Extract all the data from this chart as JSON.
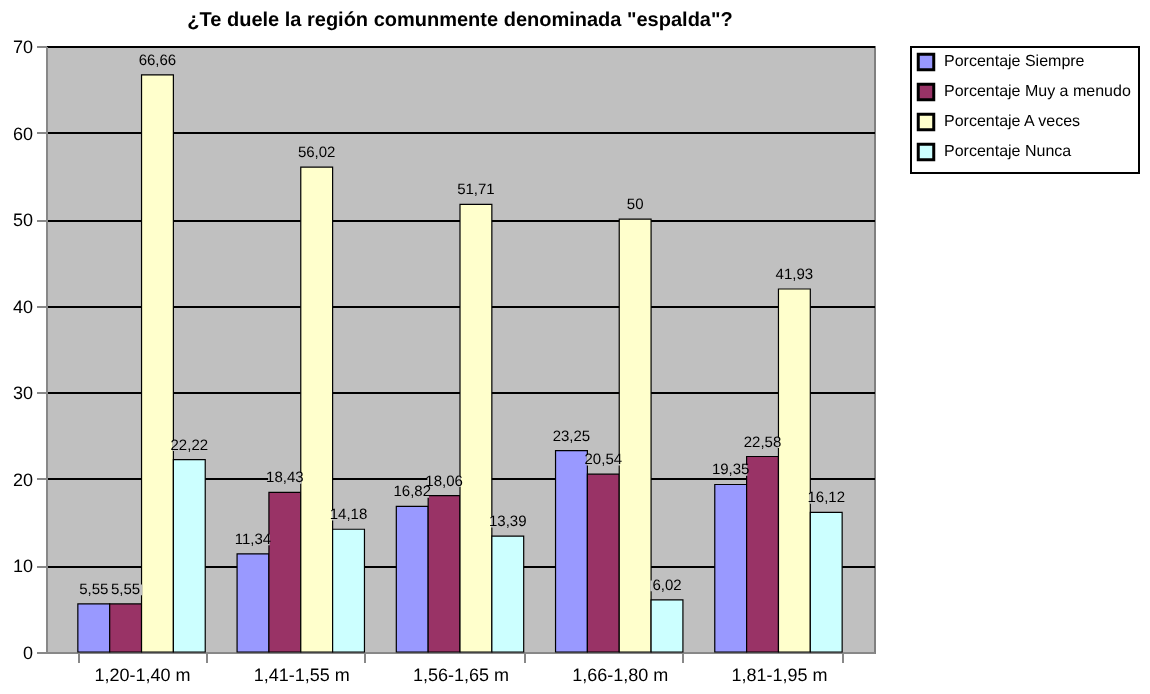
{
  "chart_data": {
    "type": "bar",
    "title": "¿Te duele la región comunmente denominada \"espalda\"?",
    "categories": [
      "1,20-1,40 m",
      "1,41-1,55 m",
      "1,56-1,65 m",
      "1,66-1,80 m",
      "1,81-1,95 m"
    ],
    "series": [
      {
        "name": "Porcentaje Siempre",
        "color": "#9999ff",
        "values": [
          5.55,
          11.34,
          16.82,
          23.25,
          19.35
        ],
        "value_labels": [
          "5,55",
          "11,34",
          "16,82",
          "23,25",
          "19,35"
        ]
      },
      {
        "name": "Porcentaje Muy a menudo",
        "color": "#993366",
        "values": [
          5.55,
          18.43,
          18.06,
          20.54,
          22.58
        ],
        "value_labels": [
          "5,55",
          "18,43",
          "18,06",
          "20,54",
          "22,58"
        ]
      },
      {
        "name": "Porcentaje A veces",
        "color": "#ffffcc",
        "values": [
          66.66,
          56.02,
          51.71,
          50,
          41.93
        ],
        "value_labels": [
          "66,66",
          "56,02",
          "51,71",
          "50",
          "41,93"
        ]
      },
      {
        "name": "Porcentaje Nunca",
        "color": "#ccffff",
        "values": [
          22.22,
          14.18,
          13.39,
          6.02,
          16.12
        ],
        "value_labels": [
          "22,22",
          "14,18",
          "13,39",
          "6,02",
          "16,12"
        ]
      }
    ],
    "ylim": [
      0,
      70
    ],
    "yticks": [
      0,
      10,
      20,
      30,
      40,
      50,
      60,
      70
    ],
    "grid": "y",
    "legend": "right"
  }
}
